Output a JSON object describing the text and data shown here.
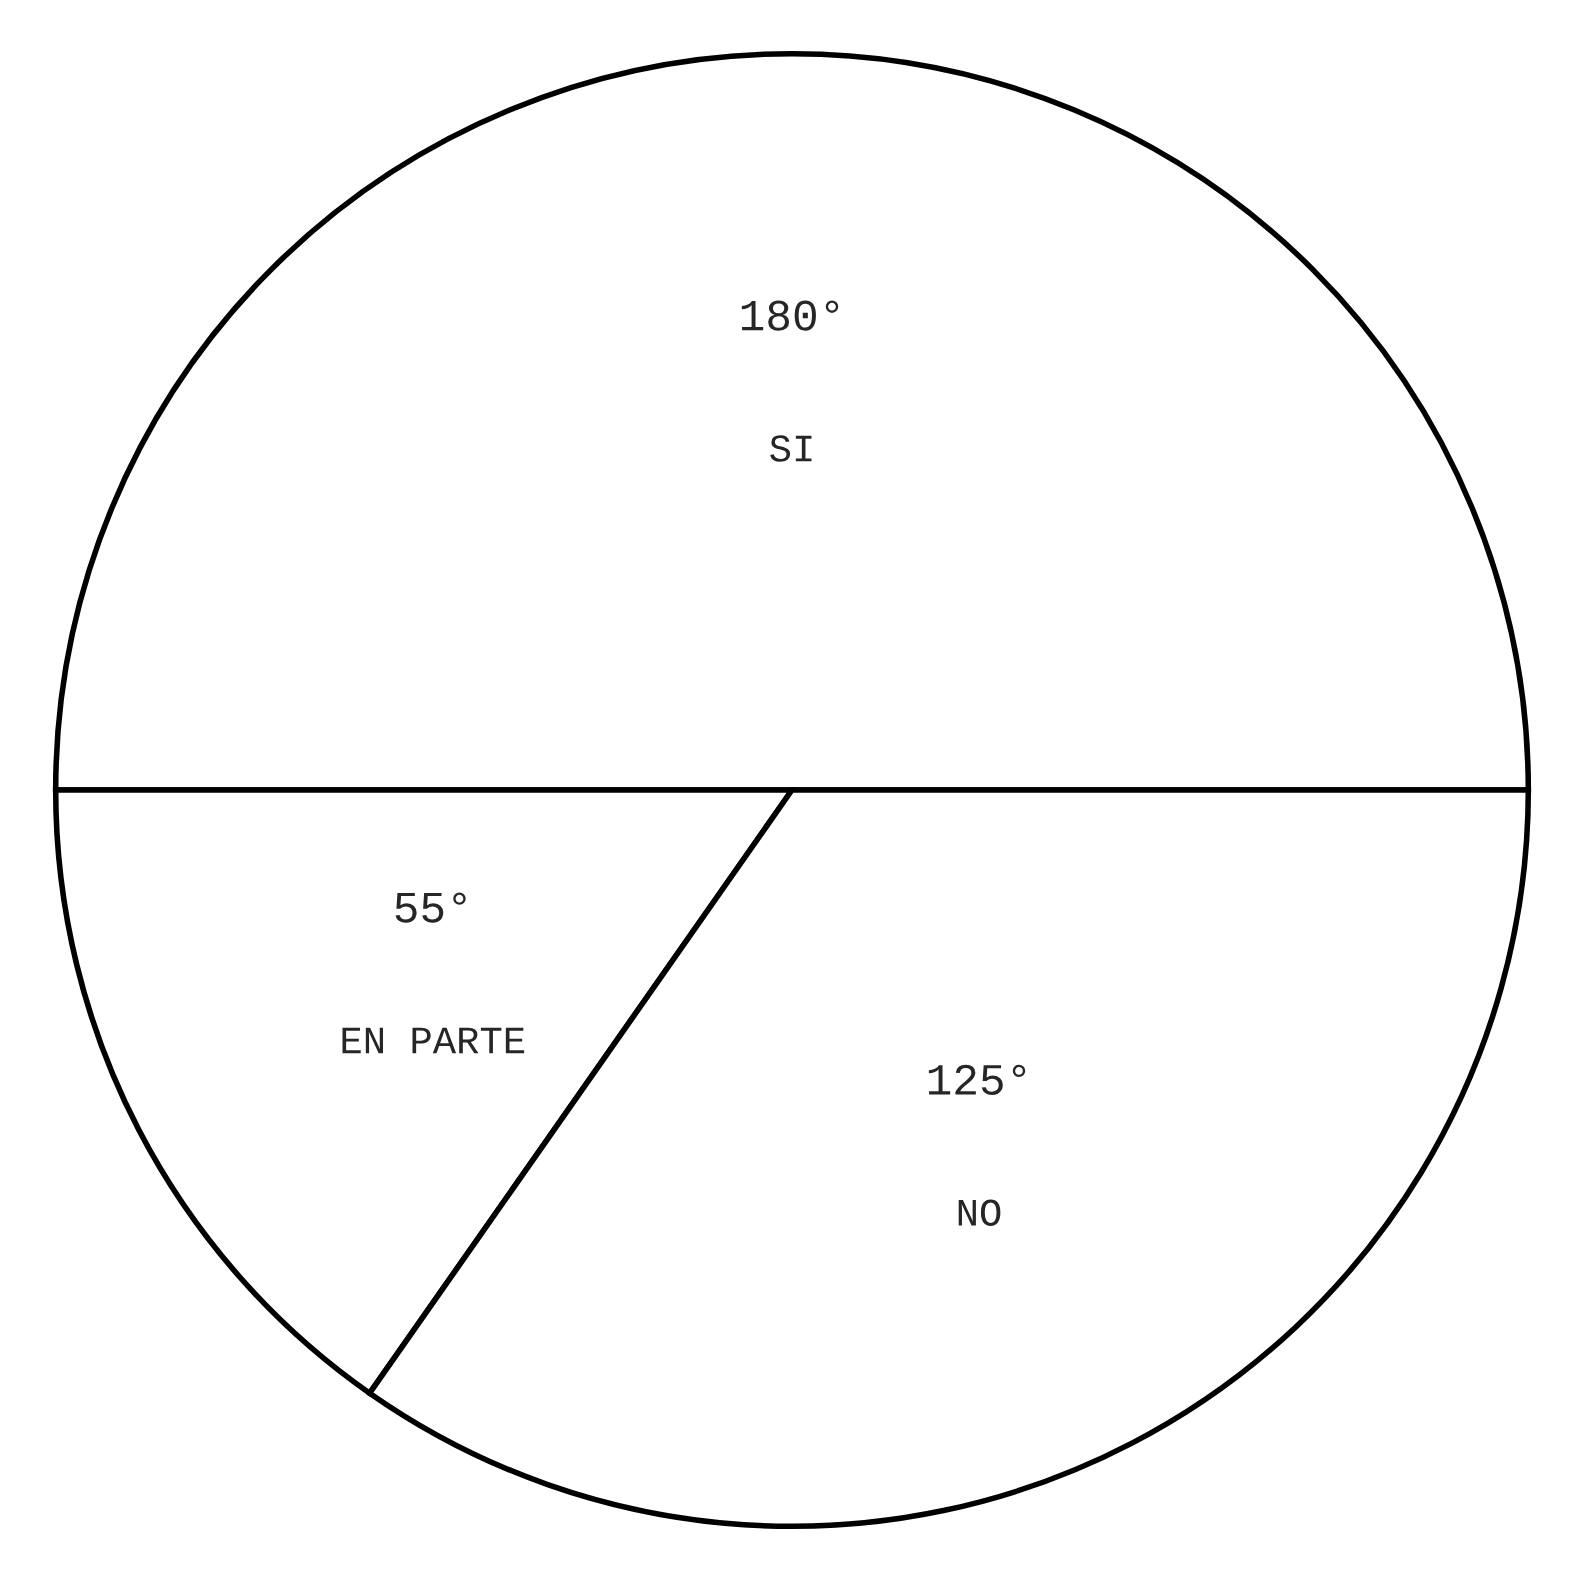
{
  "chart_data": {
    "type": "pie",
    "categories": [
      "SI",
      "EN PARTE",
      "NO"
    ],
    "values": [
      180,
      55,
      125
    ],
    "colors": [
      "#ffffff",
      "#ffffff",
      "#ffffff"
    ],
    "value_labels": [
      "180°",
      "55°",
      "125°"
    ]
  }
}
